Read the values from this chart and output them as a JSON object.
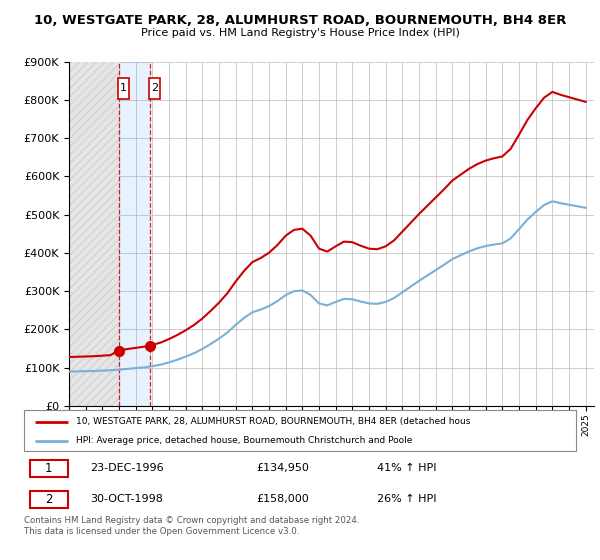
{
  "title": "10, WESTGATE PARK, 28, ALUMHURST ROAD, BOURNEMOUTH, BH4 8ER",
  "subtitle": "Price paid vs. HM Land Registry's House Price Index (HPI)",
  "ylim": [
    0,
    900000
  ],
  "legend_line1": "10, WESTGATE PARK, 28, ALUMHURST ROAD, BOURNEMOUTH, BH4 8ER (detached hous",
  "legend_line2": "HPI: Average price, detached house, Bournemouth Christchurch and Poole",
  "sale1_date": "23-DEC-1996",
  "sale1_price": "£134,950",
  "sale1_hpi": "41% ↑ HPI",
  "sale2_date": "30-OCT-1998",
  "sale2_price": "£158,000",
  "sale2_hpi": "26% ↑ HPI",
  "footer": "Contains HM Land Registry data © Crown copyright and database right 2024.\nThis data is licensed under the Open Government Licence v3.0.",
  "hpi_color": "#7bafd4",
  "sale_color": "#cc0000",
  "background_color": "#ffffff",
  "grid_color": "#bbbbbb",
  "sale1_year": 1996.97,
  "sale2_year": 1998.83,
  "sale1_price_val": 134950,
  "sale2_price_val": 158000,
  "hpi_values": [
    90000,
    90500,
    91000,
    91500,
    92500,
    93500,
    95000,
    97000,
    99000,
    101000,
    104000,
    108000,
    114000,
    121000,
    129000,
    138000,
    149000,
    162000,
    176000,
    192000,
    212000,
    230000,
    245000,
    252000,
    261000,
    274000,
    290000,
    300000,
    302000,
    290000,
    268000,
    263000,
    272000,
    280000,
    279000,
    273000,
    268000,
    267000,
    272000,
    282000,
    297000,
    312000,
    327000,
    341000,
    355000,
    369000,
    384000,
    394000,
    404000,
    412000,
    418000,
    422000,
    425000,
    438000,
    462000,
    487000,
    507000,
    525000,
    535000,
    530000,
    526000,
    522000,
    518000
  ],
  "years_hpi": [
    1994.0,
    1994.5,
    1995.0,
    1995.5,
    1996.0,
    1996.5,
    1997.0,
    1997.5,
    1998.0,
    1998.5,
    1999.0,
    1999.5,
    2000.0,
    2000.5,
    2001.0,
    2001.5,
    2002.0,
    2002.5,
    2003.0,
    2003.5,
    2004.0,
    2004.5,
    2005.0,
    2005.5,
    2006.0,
    2006.5,
    2007.0,
    2007.5,
    2008.0,
    2008.5,
    2009.0,
    2009.5,
    2010.0,
    2010.5,
    2011.0,
    2011.5,
    2012.0,
    2012.5,
    2013.0,
    2013.5,
    2014.0,
    2014.5,
    2015.0,
    2015.5,
    2016.0,
    2016.5,
    2017.0,
    2017.5,
    2018.0,
    2018.5,
    2019.0,
    2019.5,
    2020.0,
    2020.5,
    2021.0,
    2021.5,
    2022.0,
    2022.5,
    2023.0,
    2023.5,
    2024.0,
    2024.5,
    2025.0
  ]
}
